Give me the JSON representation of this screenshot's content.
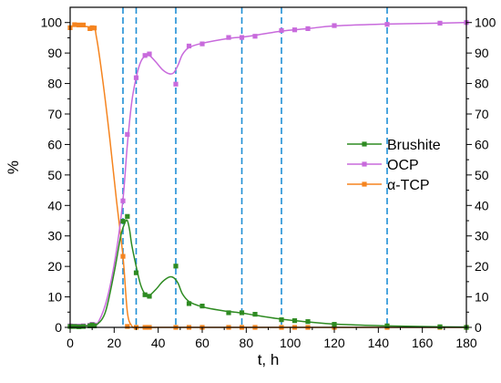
{
  "chart_data": {
    "type": "line",
    "xlabel": "t, h",
    "ylabel": "%",
    "xlim": [
      0,
      180
    ],
    "ylim": [
      0,
      105
    ],
    "x_ticks": [
      0,
      20,
      40,
      60,
      80,
      100,
      120,
      140,
      160,
      180
    ],
    "x_tick_labels": [
      "0",
      "20",
      "40",
      "60",
      "80",
      "100",
      "120",
      "140",
      "160",
      "180"
    ],
    "y_ticks": [
      0,
      10,
      20,
      30,
      40,
      50,
      60,
      70,
      80,
      90,
      100
    ],
    "y_tick_labels": [
      "0",
      "10",
      "20",
      "30",
      "40",
      "50",
      "60",
      "70",
      "80",
      "90",
      "100"
    ],
    "grid": false,
    "mirrored_right_axis": true,
    "legend_position": "center-right",
    "vertical_dashed_lines_x": [
      24,
      30,
      48,
      78,
      96,
      144
    ],
    "vertical_line_color": "#1f8fd6",
    "series": [
      {
        "name": "Brushite",
        "color": "#2e8b22",
        "points": [
          [
            0,
            0.3
          ],
          [
            2,
            0.3
          ],
          [
            4,
            0.2
          ],
          [
            6,
            0.3
          ],
          [
            9,
            0.5
          ],
          [
            10,
            0.8
          ],
          [
            11,
            0.5
          ],
          [
            24,
            34.8
          ],
          [
            26,
            36.4
          ],
          [
            30,
            17.9
          ],
          [
            34,
            10.7
          ],
          [
            36,
            10.2
          ],
          [
            48,
            20.1
          ],
          [
            54,
            7.8
          ],
          [
            60,
            7.0
          ],
          [
            72,
            4.8
          ],
          [
            78,
            4.8
          ],
          [
            84,
            4.3
          ],
          [
            96,
            2.5
          ],
          [
            102,
            2.2
          ],
          [
            108,
            1.9
          ],
          [
            120,
            1.0
          ],
          [
            144,
            0.5
          ],
          [
            168,
            0.2
          ],
          [
            180,
            0.0
          ]
        ],
        "curve": [
          [
            0,
            0.3
          ],
          [
            10,
            0.6
          ],
          [
            12,
            0.8
          ],
          [
            16,
            5
          ],
          [
            20,
            18
          ],
          [
            23,
            30
          ],
          [
            25,
            34.5
          ],
          [
            26,
            35
          ],
          [
            27,
            32
          ],
          [
            28,
            27
          ],
          [
            30,
            20
          ],
          [
            32,
            14
          ],
          [
            34,
            11
          ],
          [
            36,
            10.5
          ],
          [
            39,
            12.5
          ],
          [
            42,
            15
          ],
          [
            45,
            16.5
          ],
          [
            47,
            16.3
          ],
          [
            49,
            14.5
          ],
          [
            51,
            11
          ],
          [
            54,
            8.5
          ],
          [
            58,
            7.2
          ],
          [
            62,
            6.4
          ],
          [
            70,
            5.4
          ],
          [
            78,
            4.7
          ],
          [
            84,
            4.0
          ],
          [
            96,
            2.7
          ],
          [
            108,
            1.8
          ],
          [
            120,
            1.1
          ],
          [
            144,
            0.5
          ],
          [
            168,
            0.2
          ],
          [
            180,
            0.1
          ]
        ]
      },
      {
        "name": "OCP",
        "color": "#c86adc",
        "points": [
          [
            0,
            0.5
          ],
          [
            2,
            0.4
          ],
          [
            4,
            0.4
          ],
          [
            6,
            0.5
          ],
          [
            9,
            0.7
          ],
          [
            10,
            1.0
          ],
          [
            11,
            0.8
          ],
          [
            24,
            41.5
          ],
          [
            26,
            63.3
          ],
          [
            30,
            81.9
          ],
          [
            34,
            89.2
          ],
          [
            36,
            89.7
          ],
          [
            48,
            79.8
          ],
          [
            54,
            92.3
          ],
          [
            60,
            93.0
          ],
          [
            72,
            95.1
          ],
          [
            78,
            95.1
          ],
          [
            84,
            95.5
          ],
          [
            96,
            97.4
          ],
          [
            102,
            97.6
          ],
          [
            108,
            98.0
          ],
          [
            120,
            99.0
          ],
          [
            144,
            99.4
          ],
          [
            168,
            99.8
          ],
          [
            180,
            100.0
          ]
        ],
        "curve": [
          [
            0,
            0.5
          ],
          [
            10,
            0.8
          ],
          [
            13,
            2
          ],
          [
            17,
            10
          ],
          [
            21,
            25
          ],
          [
            24,
            42
          ],
          [
            26,
            60
          ],
          [
            28,
            74
          ],
          [
            30,
            82
          ],
          [
            32,
            87
          ],
          [
            34,
            89
          ],
          [
            36,
            89.2
          ],
          [
            39,
            87
          ],
          [
            42,
            84.5
          ],
          [
            45,
            83.2
          ],
          [
            47,
            83.5
          ],
          [
            49,
            86
          ],
          [
            51,
            89.5
          ],
          [
            54,
            91.8
          ],
          [
            60,
            93.2
          ],
          [
            72,
            94.8
          ],
          [
            78,
            95.2
          ],
          [
            84,
            95.8
          ],
          [
            96,
            97.2
          ],
          [
            108,
            98.0
          ],
          [
            120,
            98.9
          ],
          [
            144,
            99.5
          ],
          [
            168,
            99.8
          ],
          [
            180,
            100.0
          ]
        ]
      },
      {
        "name": "α-TCP",
        "color": "#f5841f",
        "points": [
          [
            0,
            98.3
          ],
          [
            2,
            99.3
          ],
          [
            4,
            99.2
          ],
          [
            6,
            99.2
          ],
          [
            9,
            98.0
          ],
          [
            10,
            98.3
          ],
          [
            11,
            98.2
          ],
          [
            24,
            23.3
          ],
          [
            26,
            0.3
          ],
          [
            30,
            0.0
          ],
          [
            34,
            0.0
          ],
          [
            36,
            0.0
          ],
          [
            48,
            0.0
          ],
          [
            54,
            0.0
          ],
          [
            60,
            0.0
          ],
          [
            72,
            0.0
          ],
          [
            78,
            0.0
          ],
          [
            84,
            0.0
          ],
          [
            96,
            0.0
          ],
          [
            102,
            0.0
          ],
          [
            108,
            0.0
          ],
          [
            120,
            0.0
          ],
          [
            144,
            0.0
          ],
          [
            168,
            0.0
          ],
          [
            180,
            0.0
          ]
        ],
        "curve": [
          [
            0,
            98.8
          ],
          [
            10,
            98.3
          ],
          [
            12,
            95
          ],
          [
            15,
            80
          ],
          [
            18,
            62
          ],
          [
            21,
            42
          ],
          [
            24,
            23.3
          ],
          [
            26,
            5
          ],
          [
            28,
            0.5
          ],
          [
            30,
            0.0
          ],
          [
            40,
            0.0
          ],
          [
            60,
            0.0
          ],
          [
            100,
            0.0
          ],
          [
            180,
            0.0
          ]
        ]
      }
    ]
  }
}
